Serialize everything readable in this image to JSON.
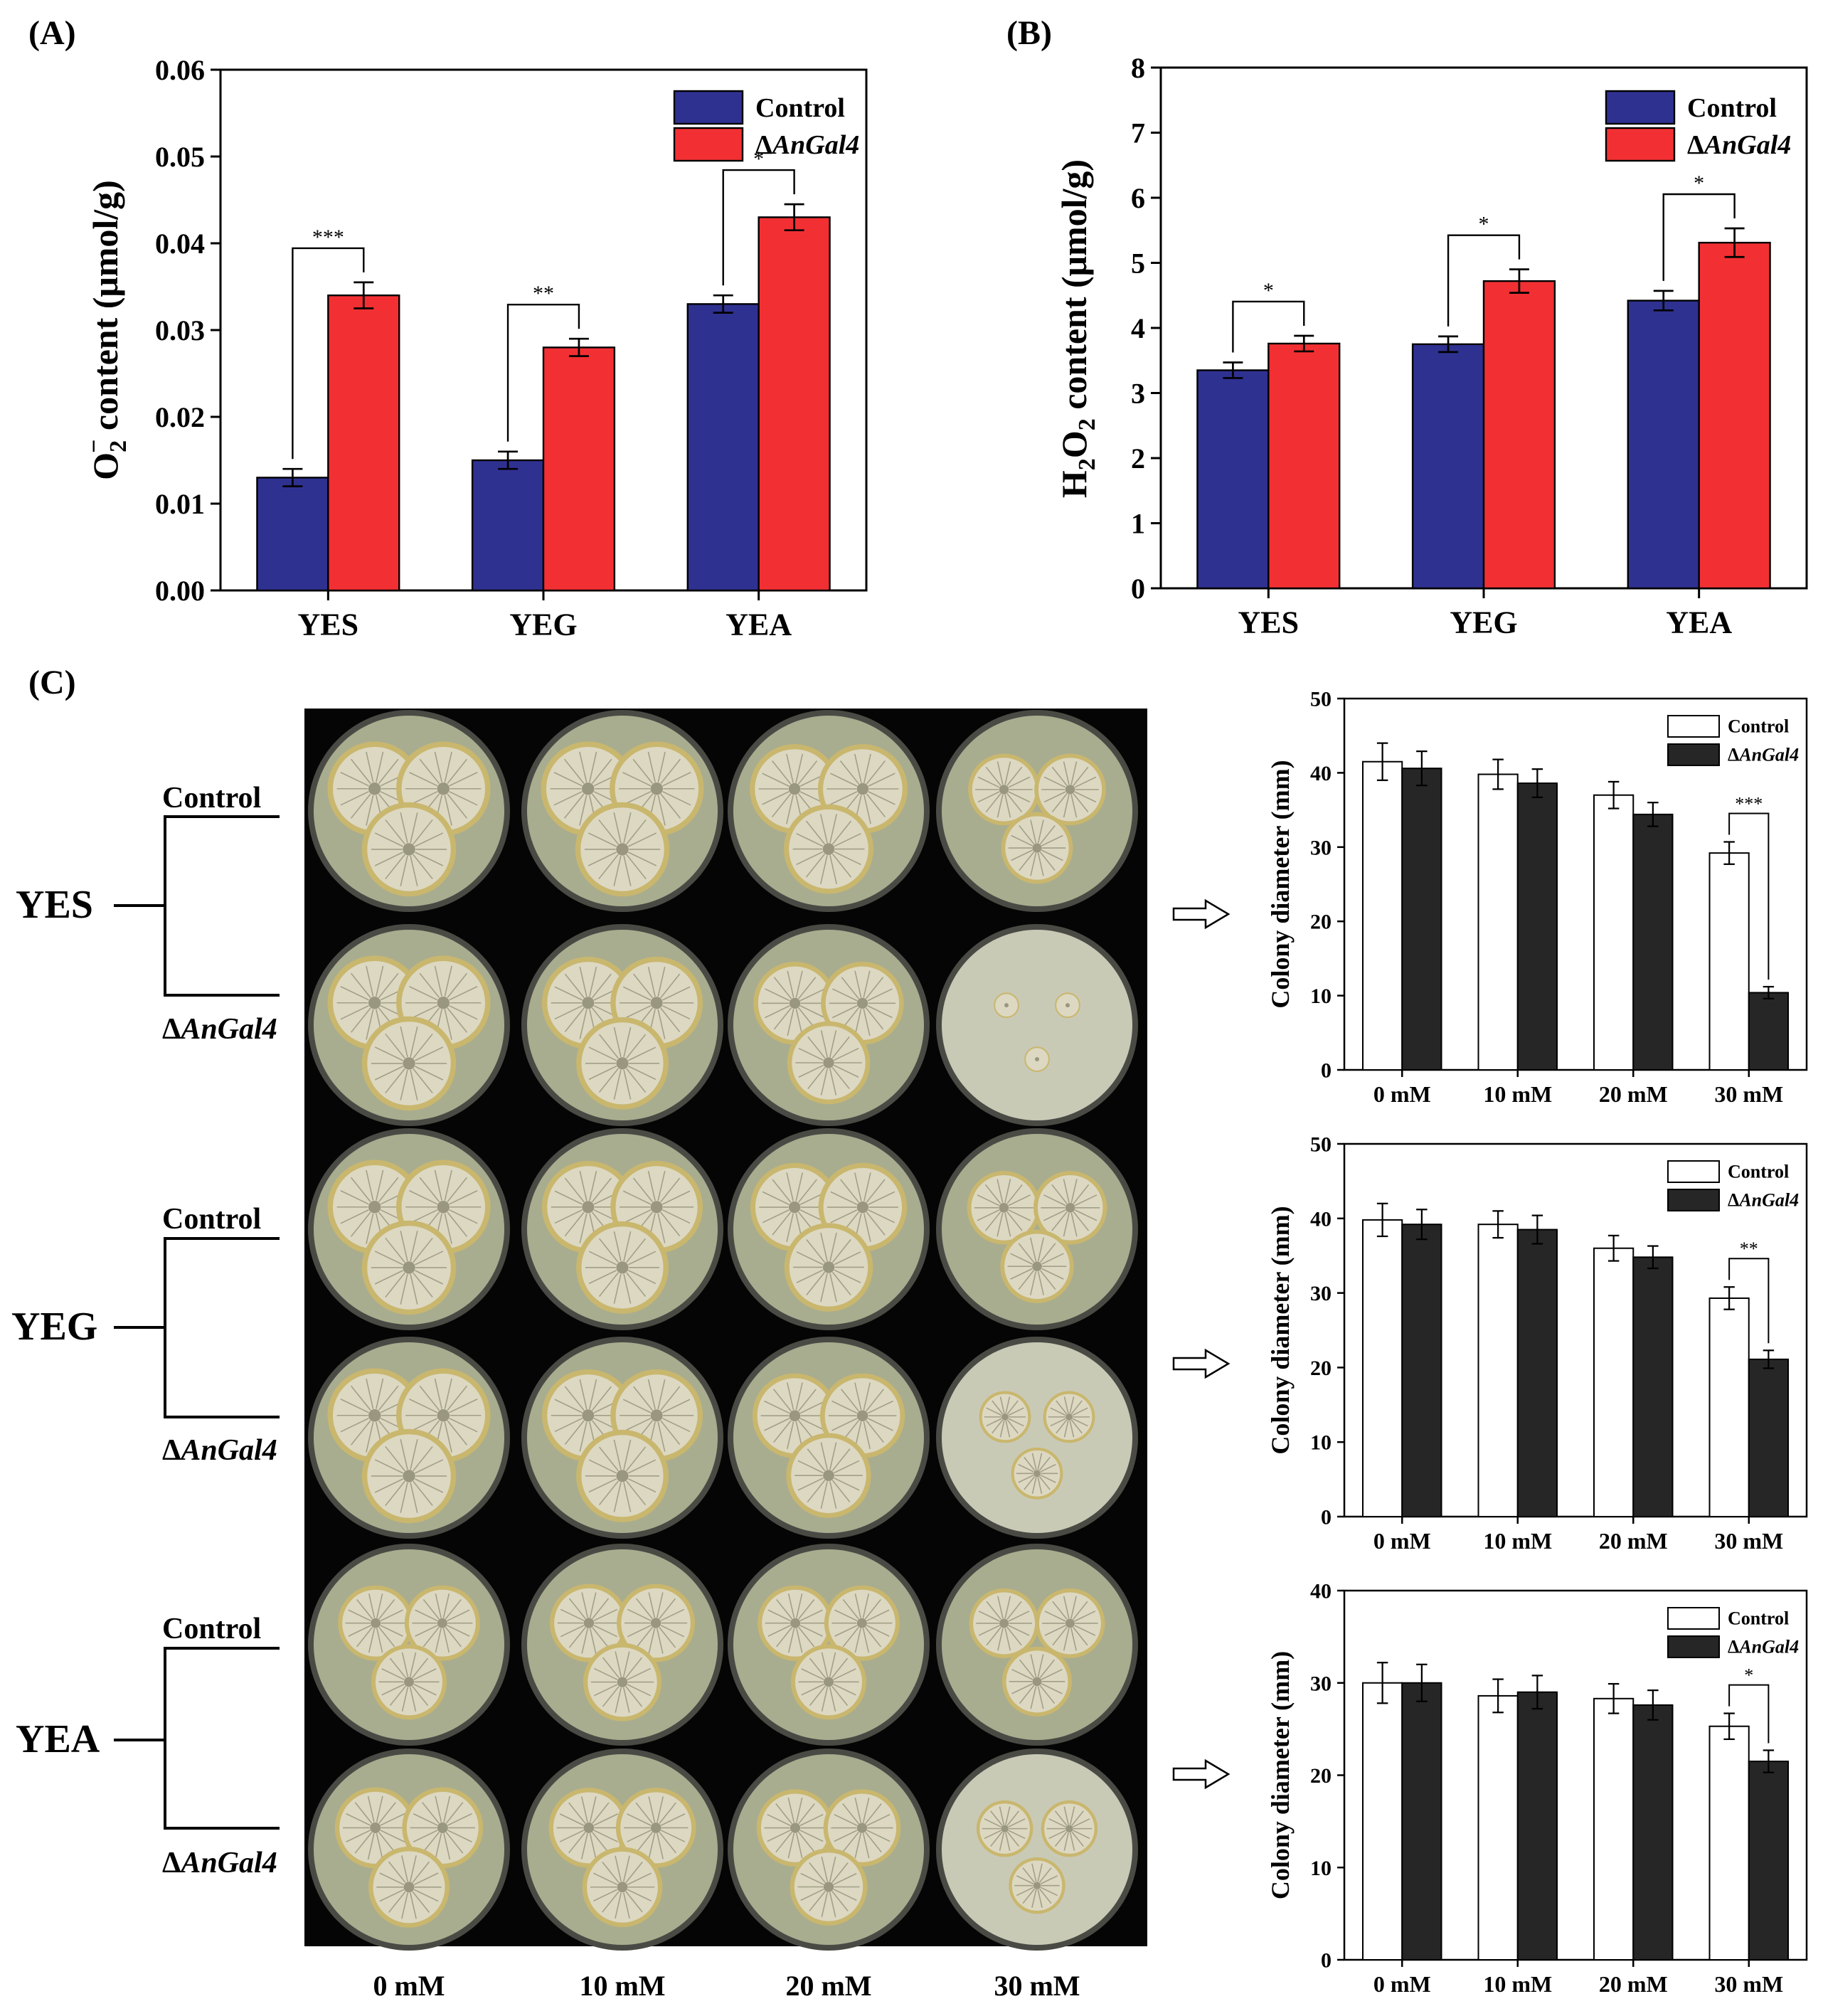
{
  "panel_labels": {
    "a": "(A)",
    "b": "(B)",
    "c": "(C)"
  },
  "colors": {
    "control": "#2f3191",
    "mutant": "#f23033",
    "bw_control": "#ffffff",
    "bw_mutant": "#262626",
    "photo_bg": "#050505",
    "plate_rim": "#4a4a45",
    "agar": "#a9ad8f",
    "agar_light": "#c9cab6",
    "colony": "#ddd8c2",
    "colony_edge": "#c9b76e",
    "colony_ridge": "#8a876f"
  },
  "chart_data": [
    {
      "id": "A",
      "type": "bar",
      "ylabel_prefix": "O",
      "ylabel_sub": "2",
      "ylabel_sup": "−",
      "ylabel_rest": " content (μmol/g)",
      "categories": [
        "YES",
        "YEG",
        "YEA"
      ],
      "ylim": [
        0,
        0.06
      ],
      "yticks": [
        "0.00",
        "0.01",
        "0.02",
        "0.03",
        "0.04",
        "0.05",
        "0.06"
      ],
      "series": [
        {
          "name": "Control",
          "values": [
            0.013,
            0.015,
            0.033
          ],
          "errors": [
            0.001,
            0.001,
            0.001
          ]
        },
        {
          "name": "ΔAnGal4",
          "values": [
            0.034,
            0.028,
            0.043
          ],
          "errors": [
            0.0015,
            0.001,
            0.0015
          ]
        }
      ],
      "significance": [
        "***",
        "**",
        "*"
      ],
      "legend": [
        "Control",
        "ΔAnGal4"
      ]
    },
    {
      "id": "B",
      "type": "bar",
      "ylabel_prefix": "H",
      "ylabel_sub": "2",
      "ylabel_mid": "O",
      "ylabel_sub2": "2",
      "ylabel_rest": " content (μmol/g)",
      "categories": [
        "YES",
        "YEG",
        "YEA"
      ],
      "ylim": [
        0,
        8
      ],
      "yticks": [
        "0",
        "1",
        "2",
        "3",
        "4",
        "5",
        "6",
        "7",
        "8"
      ],
      "series": [
        {
          "name": "Control",
          "values": [
            3.35,
            3.75,
            4.42
          ],
          "errors": [
            0.12,
            0.12,
            0.15
          ]
        },
        {
          "name": "ΔAnGal4",
          "values": [
            3.76,
            4.72,
            5.31
          ],
          "errors": [
            0.12,
            0.18,
            0.22
          ]
        }
      ],
      "significance": [
        "*",
        "*",
        "*"
      ],
      "legend": [
        "Control",
        "ΔAnGal4"
      ]
    },
    {
      "id": "C1",
      "type": "bar",
      "ylabel": "Colony diameter (mm)",
      "categories": [
        "0 mM",
        "10 mM",
        "20 mM",
        "30 mM"
      ],
      "ylim": [
        0,
        50
      ],
      "yticks": [
        "0",
        "10",
        "20",
        "30",
        "40",
        "50"
      ],
      "series": [
        {
          "name": "Control",
          "values": [
            41.5,
            39.8,
            37.0,
            29.2
          ],
          "errors": [
            2.5,
            2.0,
            1.8,
            1.5
          ]
        },
        {
          "name": "ΔAnGal4",
          "values": [
            40.6,
            38.6,
            34.4,
            10.4
          ],
          "errors": [
            2.3,
            1.9,
            1.6,
            0.8
          ]
        }
      ],
      "significance": [
        "***"
      ],
      "legend": [
        "Control",
        "ΔAnGal4"
      ]
    },
    {
      "id": "C2",
      "type": "bar",
      "ylabel": "Colony diameter (mm)",
      "categories": [
        "0 mM",
        "10 mM",
        "20 mM",
        "30 mM"
      ],
      "ylim": [
        0,
        50
      ],
      "yticks": [
        "0",
        "10",
        "20",
        "30",
        "40",
        "50"
      ],
      "series": [
        {
          "name": "Control",
          "values": [
            39.8,
            39.2,
            36.0,
            29.3
          ],
          "errors": [
            2.2,
            1.8,
            1.7,
            1.5
          ]
        },
        {
          "name": "ΔAnGal4",
          "values": [
            39.2,
            38.5,
            34.8,
            21.1
          ],
          "errors": [
            2.0,
            1.9,
            1.5,
            1.2
          ]
        }
      ],
      "significance": [
        "**"
      ],
      "legend": [
        "Control",
        "ΔAnGal4"
      ]
    },
    {
      "id": "C3",
      "type": "bar",
      "ylabel": "Colony diameter (mm)",
      "categories": [
        "0 mM",
        "10 mM",
        "20 mM",
        "30 mM"
      ],
      "ylim": [
        0,
        40
      ],
      "yticks": [
        "0",
        "10",
        "20",
        "30",
        "40"
      ],
      "series": [
        {
          "name": "Control",
          "values": [
            30.0,
            28.6,
            28.3,
            25.3
          ],
          "errors": [
            2.2,
            1.8,
            1.6,
            1.4
          ]
        },
        {
          "name": "ΔAnGal4",
          "values": [
            30.0,
            29.0,
            27.6,
            21.5
          ],
          "errors": [
            2.0,
            1.8,
            1.6,
            1.2
          ]
        }
      ],
      "significance": [
        "*"
      ],
      "legend": [
        "Control",
        "ΔAnGal4"
      ]
    }
  ],
  "plates": {
    "groups": [
      {
        "name": "YES",
        "control_label": "Control",
        "mutant_label": "ΔAnGal4"
      },
      {
        "name": "YEG",
        "control_label": "Control",
        "mutant_label": "ΔAnGal4"
      },
      {
        "name": "YEA",
        "control_label": "Control",
        "mutant_label": "ΔAnGal4"
      }
    ],
    "concentrations": [
      "0 mM",
      "10 mM",
      "20 mM",
      "30 mM"
    ],
    "colony_size": [
      [
        1.0,
        1.0,
        0.95,
        0.76
      ],
      [
        1.0,
        0.98,
        0.88,
        0.27
      ],
      [
        1.0,
        0.98,
        0.94,
        0.78
      ],
      [
        1.0,
        0.98,
        0.9,
        0.55
      ],
      [
        0.8,
        0.83,
        0.8,
        0.74
      ],
      [
        0.86,
        0.85,
        0.82,
        0.6
      ]
    ]
  }
}
